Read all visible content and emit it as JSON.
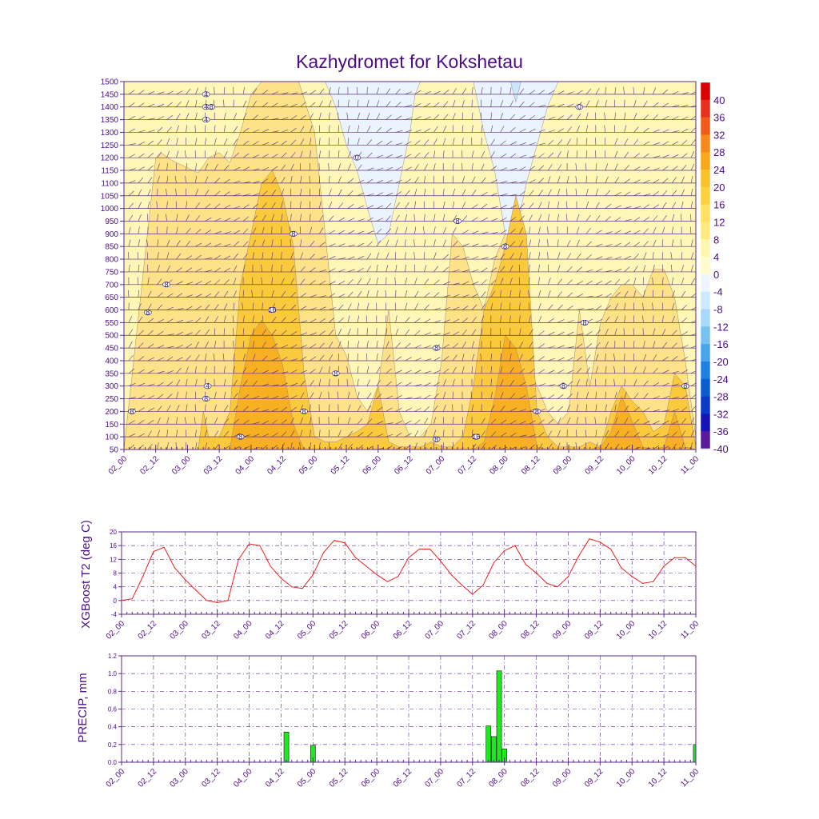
{
  "title": "Kazhydromet for Kokshetau",
  "colors": {
    "axis": "#5a2a8a",
    "text": "#4b0c86",
    "t2_line": "#e8211c",
    "precip_bar": "#1ee81e",
    "barb": "#5a2f7a"
  },
  "time_labels": [
    "02_00",
    "02_12",
    "03_00",
    "03_12",
    "04_00",
    "04_12",
    "05_00",
    "05_12",
    "06_00",
    "06_12",
    "07_00",
    "07_12",
    "08_00",
    "08_12",
    "09_00",
    "09_12",
    "10_00",
    "10_12",
    "11_00"
  ],
  "chart_data": [
    {
      "type": "heatmap",
      "name": "temperature-wind cross-section",
      "title": "Kazhydromet for Kokshetau",
      "y_ticks": [
        1500,
        1450,
        1400,
        1350,
        1300,
        1250,
        1200,
        1150,
        1100,
        1050,
        1000,
        950,
        900,
        850,
        800,
        750,
        700,
        650,
        600,
        550,
        500,
        450,
        400,
        350,
        300,
        250,
        200,
        150,
        100,
        50
      ],
      "ylim": [
        50,
        1500
      ],
      "x_range": [
        0,
        108
      ],
      "colorbar": {
        "labels": [
          "40",
          "36",
          "32",
          "28",
          "24",
          "20",
          "16",
          "12",
          "8",
          "4",
          "0",
          "-4",
          "-8",
          "-12",
          "-16",
          "-20",
          "-24",
          "-28",
          "-32",
          "-36",
          "-40"
        ],
        "colors": [
          "#d80000",
          "#e83020",
          "#f05a1a",
          "#f58a1a",
          "#f8a81a",
          "#fbc12a",
          "#fdd03e",
          "#fee062",
          "#fdeb82",
          "#fff6b0",
          "#fffbcd",
          "#eef7ff",
          "#cdeaff",
          "#a8d9fa",
          "#78c2f2",
          "#48a5ea",
          "#1f82e0",
          "#0b5ed0",
          "#0a3ac6",
          "#1414b8",
          "#5a1a9a"
        ]
      },
      "bands": [
        {
          "level": "12",
          "color": "#fde28a",
          "x": [
            0,
            6,
            7,
            9,
            12,
            14,
            16,
            18,
            20,
            22,
            24,
            26,
            28,
            30,
            31,
            33,
            36,
            38,
            40,
            42,
            44,
            46,
            48,
            50,
            52,
            54,
            56,
            58,
            60,
            62,
            64,
            66,
            68,
            70,
            72,
            74,
            76,
            78,
            80,
            82,
            84,
            86,
            88,
            90,
            92,
            94,
            96,
            98,
            100,
            102,
            104,
            106,
            108
          ],
          "y": [
            50,
            1200,
            1220,
            1190,
            1160,
            1140,
            1200,
            1220,
            1180,
            1300,
            1450,
            1500,
            1500,
            1500,
            1500,
            1500,
            1300,
            900,
            500,
            420,
            260,
            200,
            300,
            600,
            200,
            100,
            100,
            150,
            400,
            900,
            850,
            700,
            600,
            800,
            900,
            900,
            400,
            300,
            200,
            150,
            200,
            600,
            300,
            550,
            650,
            700,
            700,
            650,
            760,
            760,
            650,
            400,
            100
          ]
        },
        {
          "level": "16",
          "color": "#fbc93c",
          "x": [
            0,
            14,
            15,
            16,
            18,
            20,
            22,
            24,
            26,
            28,
            30,
            32,
            34,
            36,
            38,
            40,
            42,
            44,
            46,
            48,
            50,
            52,
            54,
            56,
            58,
            60,
            62,
            64,
            66,
            68,
            70,
            72,
            74,
            76,
            78,
            80,
            82,
            84,
            86,
            88,
            90,
            92,
            94,
            96,
            98,
            100,
            102,
            104,
            106,
            108
          ],
          "y": [
            50,
            50,
            200,
            100,
            100,
            200,
            700,
            900,
            1100,
            1150,
            1050,
            850,
            350,
            100,
            80,
            80,
            100,
            120,
            150,
            300,
            80,
            60,
            60,
            60,
            80,
            60,
            60,
            100,
            300,
            600,
            700,
            850,
            1050,
            900,
            200,
            100,
            60,
            60,
            60,
            80,
            60,
            200,
            300,
            240,
            200,
            120,
            150,
            350,
            300,
            60
          ]
        },
        {
          "level": "20",
          "color": "#f7b022",
          "x": [
            0,
            20,
            22,
            24,
            26,
            28,
            30,
            32,
            34,
            36,
            66,
            68,
            70,
            72,
            74,
            76,
            78,
            80,
            88,
            90,
            92,
            94,
            96,
            98,
            100,
            102,
            104,
            106,
            108
          ],
          "y": [
            50,
            50,
            300,
            500,
            560,
            500,
            380,
            150,
            50,
            50,
            50,
            80,
            250,
            500,
            450,
            300,
            60,
            50,
            50,
            60,
            120,
            260,
            160,
            60,
            50,
            60,
            200,
            60,
            50
          ]
        }
      ],
      "contour_labels": [
        {
          "text": "8",
          "t": 1.5,
          "p": 200
        },
        {
          "text": "8",
          "t": 4.5,
          "p": 590
        },
        {
          "text": "8",
          "t": 8,
          "p": 700
        },
        {
          "text": "4",
          "t": 15.5,
          "p": 1450
        },
        {
          "text": "4",
          "t": 15.5,
          "p": 1400
        },
        {
          "text": "4",
          "t": 15.5,
          "p": 1350
        },
        {
          "text": "8",
          "t": 15.5,
          "p": 250
        },
        {
          "text": "4",
          "t": 15.8,
          "p": 300
        },
        {
          "text": "8",
          "t": 16.5,
          "p": 1400
        },
        {
          "text": "8",
          "t": 22,
          "p": 100
        },
        {
          "text": "16",
          "t": 28,
          "p": 600
        },
        {
          "text": "8",
          "t": 32,
          "p": 900
        },
        {
          "text": "8",
          "t": 34,
          "p": 200
        },
        {
          "text": "8",
          "t": 40,
          "p": 350
        },
        {
          "text": "0",
          "t": 44,
          "p": 1200
        },
        {
          "text": "8",
          "t": 59,
          "p": 450
        },
        {
          "text": "8",
          "t": 59,
          "p": 90
        },
        {
          "text": "8",
          "t": 63,
          "p": 950
        },
        {
          "text": "16",
          "t": 66.5,
          "p": 100
        },
        {
          "text": "8",
          "t": 72,
          "p": 850
        },
        {
          "text": "8",
          "t": 78,
          "p": 200
        },
        {
          "text": "8",
          "t": 83,
          "p": 300
        },
        {
          "text": "0",
          "t": 86,
          "p": 1400
        },
        {
          "text": "8",
          "t": 87,
          "p": 550
        },
        {
          "text": "8",
          "t": 106,
          "p": 300
        }
      ]
    },
    {
      "type": "line",
      "name": "XGBoost T2",
      "ylabel": "XGBoost T2 (deg C)",
      "ylim": [
        -4,
        20
      ],
      "y_ticks": [
        "20",
        "16",
        "12",
        "8",
        "4",
        "0",
        "-4"
      ],
      "x": [
        0,
        2,
        4,
        6,
        8,
        10,
        12,
        14,
        16,
        18,
        20,
        22,
        24,
        26,
        28,
        30,
        32,
        34,
        36,
        38,
        40,
        42,
        44,
        46,
        48,
        50,
        52,
        54,
        56,
        58,
        60,
        62,
        64,
        66,
        68,
        70,
        72,
        74,
        76,
        78,
        80,
        82,
        84,
        86,
        88,
        90,
        92,
        94,
        96,
        98,
        100,
        102,
        104,
        106,
        108
      ],
      "values": [
        0,
        0.5,
        7,
        14.3,
        15.5,
        9.5,
        6,
        3,
        0,
        -0.6,
        0,
        12,
        16.5,
        16,
        10,
        6.5,
        4,
        3.5,
        7.5,
        14,
        17.5,
        16.8,
        12.5,
        10,
        7.5,
        5.5,
        7,
        12.5,
        15,
        15,
        11.5,
        7.5,
        4.5,
        1.8,
        4.5,
        11,
        14.5,
        16,
        10.5,
        8,
        5,
        4,
        7,
        13,
        18,
        17,
        15,
        9.5,
        7,
        5,
        5.5,
        10,
        12.5,
        12.5,
        10
      ]
    },
    {
      "type": "bar",
      "name": "PRECIP",
      "ylabel": "PRECIP, mm",
      "ylim": [
        0,
        1.2
      ],
      "y_ticks": [
        "1.2",
        "1.0",
        "0.8",
        "0.6",
        "0.4",
        "0.2",
        "0.0"
      ],
      "x": [
        31,
        36,
        69,
        70,
        71,
        72,
        108
      ],
      "values": [
        0.34,
        0.19,
        0.41,
        0.29,
        1.03,
        0.15,
        0.2
      ]
    }
  ]
}
